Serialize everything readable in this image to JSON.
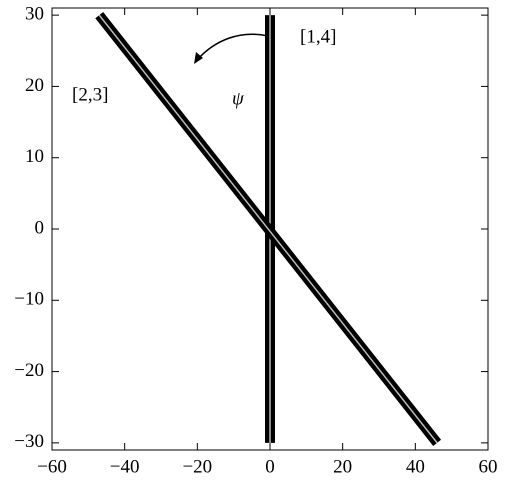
{
  "chart_data": {
    "type": "line",
    "series": [
      {
        "name": "[1,4]",
        "color": "#000000",
        "x": [
          0,
          0
        ],
        "y": [
          -30,
          30
        ]
      },
      {
        "name": "[2,3]",
        "color": "#000000",
        "x": [
          -47,
          46
        ],
        "y": [
          30,
          -30
        ]
      }
    ],
    "annotation": "ψ",
    "xlim": [
      -60,
      60
    ],
    "ylim": [
      -31,
      31
    ],
    "xticks": [
      {
        "value": -60,
        "label": "−60"
      },
      {
        "value": -40,
        "label": "−40"
      },
      {
        "value": -20,
        "label": "−20"
      },
      0,
      20,
      40,
      60
    ],
    "yticks": [
      {
        "value": -30,
        "label": "−30"
      },
      {
        "value": -20,
        "label": "−20"
      },
      {
        "value": -10,
        "label": "−10"
      },
      0,
      10,
      20,
      30
    ],
    "grid": false
  }
}
